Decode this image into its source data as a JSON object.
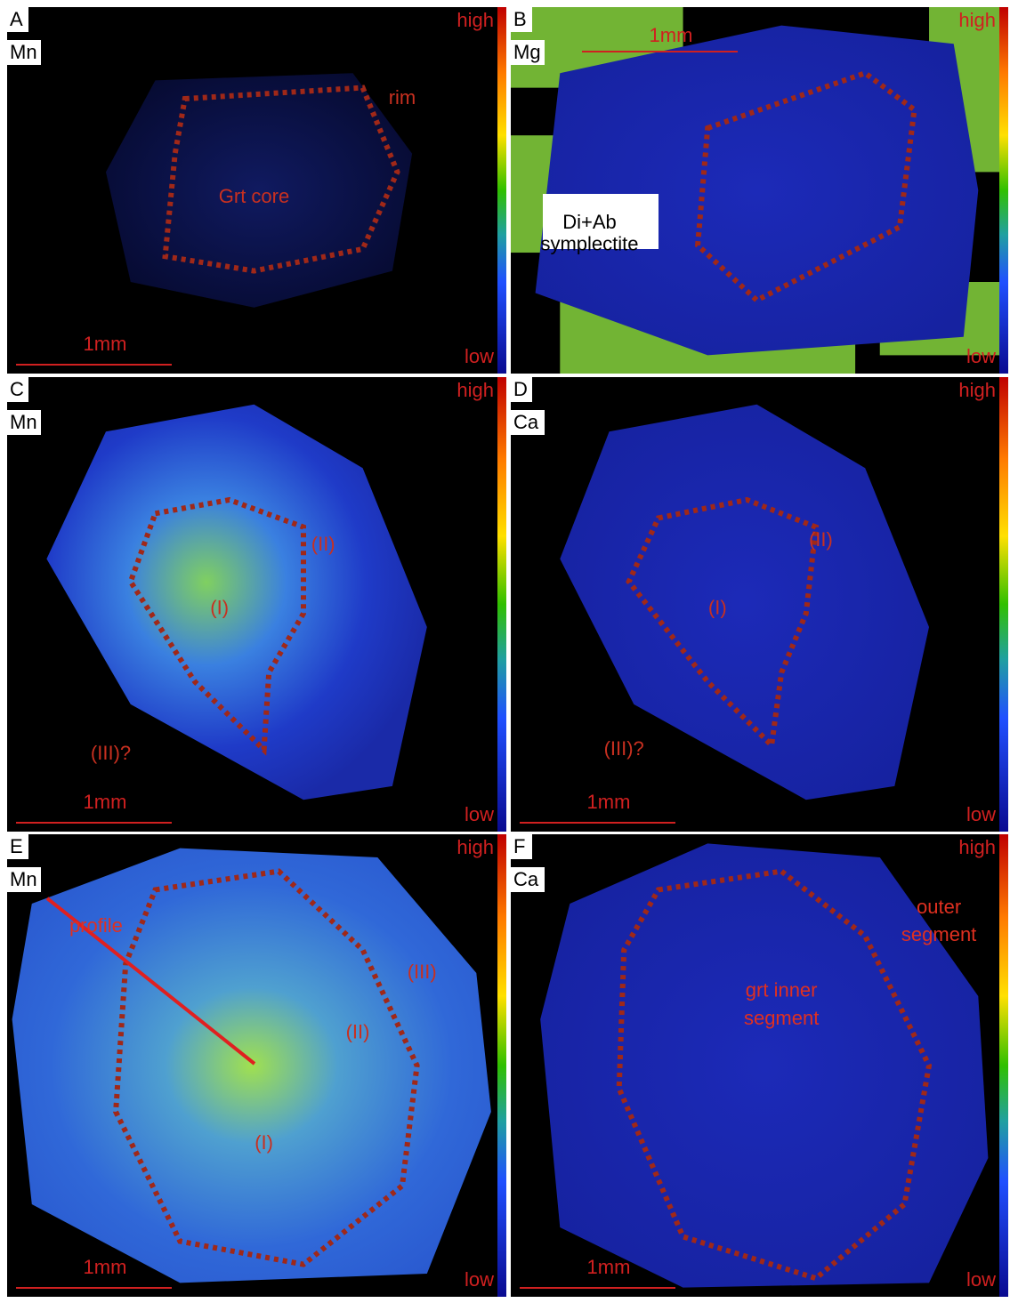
{
  "panels": [
    {
      "letter": "A",
      "element": "Mn",
      "high": "high",
      "low": "low",
      "scale": "1mm",
      "annotations": [
        "rim",
        "Grt core"
      ]
    },
    {
      "letter": "B",
      "element": "Mg",
      "high": "high",
      "low": "low",
      "scale": "1mm",
      "annotations": [
        "Di+Ab",
        "symplectite"
      ]
    },
    {
      "letter": "C",
      "element": "Mn",
      "high": "high",
      "low": "low",
      "scale": "1mm",
      "annotations": [
        "(II)",
        "(I)",
        "(III)?"
      ]
    },
    {
      "letter": "D",
      "element": "Ca",
      "high": "high",
      "low": "low",
      "scale": "1mm",
      "annotations": [
        "(II)",
        "(I)",
        "(III)?"
      ]
    },
    {
      "letter": "E",
      "element": "Mn",
      "high": "high",
      "low": "low",
      "scale": "1mm",
      "annotations": [
        "profile",
        "(III)",
        "(II)",
        "(I)"
      ]
    },
    {
      "letter": "F",
      "element": "Ca",
      "high": "high",
      "low": "low",
      "scale": "1mm",
      "annotations": [
        "outer",
        "segment",
        "grt inner",
        "segment"
      ]
    }
  ]
}
